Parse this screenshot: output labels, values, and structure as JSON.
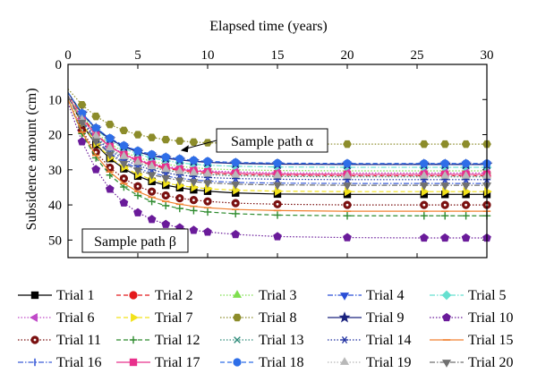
{
  "chart_data": {
    "type": "line",
    "xlabel": "Elapsed time (years)",
    "ylabel": "Subsidence amount (cm)",
    "xlim": [
      0,
      30
    ],
    "ylim": [
      0,
      55
    ],
    "y_inverted": true,
    "x_axis_position": "top",
    "grid": false,
    "legend_placement": "bottom",
    "x_ticks": [
      0,
      5,
      10,
      15,
      20,
      25,
      30
    ],
    "y_ticks": [
      0,
      10,
      20,
      30,
      40,
      50
    ],
    "x": [
      0,
      1,
      2,
      3,
      4,
      5,
      6,
      7,
      8,
      9,
      10,
      12,
      15,
      20,
      25.5,
      27,
      28.5,
      30
    ],
    "annotations": [
      {
        "text": "Sample path α",
        "points_to": {
          "x": 8,
          "y": 24.5
        }
      },
      {
        "text": "Sample path β",
        "near": {
          "x": 3.5,
          "y": 49
        }
      }
    ],
    "series": [
      {
        "name": "Trial 1",
        "color": "#000000",
        "marker": "square",
        "dash": "solid",
        "values": [
          9,
          17,
          22.8,
          26.8,
          29.7,
          31.8,
          33.3,
          34.4,
          35.1,
          35.7,
          36.1,
          36.6,
          36.9,
          37.0,
          37.0,
          37.0,
          37.0,
          37.0
        ]
      },
      {
        "name": "Trial 2",
        "color": "#e41a1c",
        "marker": "circle",
        "dash": "dashed",
        "values": [
          8,
          14.9,
          19.8,
          23.3,
          25.7,
          27.4,
          28.7,
          29.6,
          30.2,
          30.7,
          31.0,
          31.4,
          31.6,
          31.7,
          31.7,
          31.7,
          31.7,
          31.7
        ]
      },
      {
        "name": "Trial 3",
        "color": "#7fdf4f",
        "marker": "triangle-up",
        "dash": "dotted",
        "values": [
          8,
          14.6,
          19.3,
          22.6,
          24.9,
          26.5,
          27.6,
          28.4,
          29.0,
          29.4,
          29.7,
          30.0,
          30.2,
          30.3,
          30.3,
          30.3,
          30.3,
          30.3
        ]
      },
      {
        "name": "Trial 4",
        "color": "#2a4fd6",
        "marker": "triangle-down",
        "dash": "dashdot",
        "values": [
          8,
          13.9,
          18.1,
          21.1,
          23.2,
          24.7,
          25.8,
          26.6,
          27.1,
          27.5,
          27.8,
          28.1,
          28.3,
          28.4,
          28.4,
          28.4,
          28.4,
          28.4
        ]
      },
      {
        "name": "Trial 5",
        "color": "#66e0d0",
        "marker": "diamond",
        "dash": "dashdot",
        "values": [
          8,
          14.1,
          18.5,
          21.7,
          23.9,
          25.5,
          26.6,
          27.4,
          28.0,
          28.4,
          28.7,
          29.0,
          29.2,
          29.3,
          29.3,
          29.3,
          29.3,
          29.3
        ]
      },
      {
        "name": "Trial 6",
        "color": "#c04ac8",
        "marker": "triangle-left",
        "dash": "dotted",
        "values": [
          9,
          15.4,
          20.0,
          23.2,
          25.5,
          27.1,
          28.2,
          29.0,
          29.6,
          30.0,
          30.3,
          30.6,
          30.8,
          30.9,
          30.9,
          30.9,
          30.9,
          30.9
        ]
      },
      {
        "name": "Trial 7",
        "color": "#f2e21a",
        "marker": "triangle-right",
        "dash": "dashed",
        "values": [
          9,
          16.9,
          22.5,
          26.5,
          29.3,
          31.3,
          32.8,
          33.8,
          34.5,
          35.0,
          35.4,
          35.8,
          36.1,
          36.2,
          36.2,
          36.2,
          36.2,
          36.2
        ]
      },
      {
        "name": "Trial 8",
        "color": "#8c8c2a",
        "marker": "hexagon",
        "dash": "dotted",
        "values": [
          7,
          11.5,
          14.8,
          17.1,
          18.8,
          20.0,
          20.8,
          21.4,
          21.8,
          22.1,
          22.3,
          22.5,
          22.6,
          22.7,
          22.7,
          22.7,
          22.7,
          22.7
        ]
      },
      {
        "name": "Trial 9",
        "color": "#1a237e",
        "marker": "star",
        "dash": "solid",
        "values": [
          8,
          14.0,
          18.3,
          21.3,
          23.4,
          24.9,
          26.0,
          26.7,
          27.2,
          27.6,
          27.9,
          28.2,
          28.4,
          28.5,
          28.5,
          28.5,
          28.5,
          28.5
        ]
      },
      {
        "name": "Trial 10",
        "color": "#6a1b9a",
        "marker": "pentagon",
        "dash": "dotted",
        "values": [
          11,
          22.0,
          29.9,
          35.5,
          39.4,
          42.2,
          44.1,
          45.5,
          46.5,
          47.2,
          47.7,
          48.4,
          49.0,
          49.3,
          49.4,
          49.4,
          49.4,
          49.4
        ]
      },
      {
        "name": "Trial 11",
        "color": "#7a1010",
        "marker": "circle-dot",
        "dash": "dotted",
        "values": [
          10,
          18.8,
          25.0,
          29.4,
          32.5,
          34.7,
          36.2,
          37.3,
          38.1,
          38.6,
          39.0,
          39.5,
          39.8,
          40.0,
          40.0,
          40.0,
          40.0,
          40.0
        ]
      },
      {
        "name": "Trial 12",
        "color": "#2e8b2e",
        "marker": "plus",
        "dash": "dashed",
        "values": [
          10,
          19.7,
          26.6,
          31.5,
          34.9,
          37.3,
          39.0,
          40.2,
          41.0,
          41.6,
          42.0,
          42.5,
          42.9,
          43.1,
          43.1,
          43.1,
          43.1,
          43.1
        ]
      },
      {
        "name": "Trial 13",
        "color": "#2e8b7a",
        "marker": "x",
        "dash": "dotted",
        "values": [
          9,
          15.8,
          20.6,
          24.0,
          26.4,
          28.1,
          29.3,
          30.1,
          30.7,
          31.1,
          31.4,
          31.7,
          31.9,
          32.0,
          32.0,
          32.0,
          32.0,
          32.0
        ]
      },
      {
        "name": "Trial 14",
        "color": "#1e2fa0",
        "marker": "asterisk",
        "dash": "dotted",
        "values": [
          9,
          16.0,
          21.0,
          24.5,
          27.0,
          28.8,
          30.0,
          30.9,
          31.5,
          31.9,
          32.2,
          32.5,
          32.7,
          32.8,
          32.8,
          32.8,
          32.8,
          32.8
        ]
      },
      {
        "name": "Trial 15",
        "color": "#f08030",
        "marker": "hline",
        "dash": "solid",
        "values": [
          10,
          19.3,
          25.9,
          30.6,
          33.9,
          36.2,
          37.8,
          39.0,
          39.8,
          40.4,
          40.8,
          41.3,
          41.6,
          41.8,
          41.8,
          41.8,
          41.8,
          41.8
        ]
      },
      {
        "name": "Trial 16",
        "color": "#3a5cd8",
        "marker": "vline",
        "dash": "dashdot",
        "values": [
          9,
          16.3,
          21.5,
          25.2,
          27.8,
          29.6,
          30.9,
          31.8,
          32.4,
          32.9,
          33.2,
          33.6,
          33.8,
          33.9,
          33.9,
          33.9,
          33.9,
          33.9
        ]
      },
      {
        "name": "Trial 17",
        "color": "#e8308c",
        "marker": "square",
        "dash": "solid",
        "values": [
          9,
          15.5,
          20.1,
          23.4,
          25.7,
          27.3,
          28.5,
          29.3,
          29.9,
          30.3,
          30.6,
          31.0,
          31.2,
          31.3,
          31.3,
          31.3,
          31.3,
          31.3
        ]
      },
      {
        "name": "Trial 18",
        "color": "#2e6ee8",
        "marker": "circle",
        "dash": "dashed",
        "values": [
          8,
          13.9,
          18.1,
          21.0,
          23.1,
          24.6,
          25.6,
          26.4,
          26.9,
          27.3,
          27.6,
          27.9,
          28.1,
          28.2,
          28.2,
          28.2,
          28.2,
          28.2
        ]
      },
      {
        "name": "Trial 19",
        "color": "#b8b8b8",
        "marker": "triangle-up",
        "dash": "dotted",
        "values": [
          9,
          15.7,
          20.4,
          23.8,
          26.2,
          27.9,
          29.1,
          29.9,
          30.5,
          30.9,
          31.2,
          31.5,
          31.7,
          31.8,
          31.8,
          31.8,
          31.8,
          31.8
        ]
      },
      {
        "name": "Trial 20",
        "color": "#707070",
        "marker": "triangle-down",
        "dash": "dashdot",
        "values": [
          9,
          16.5,
          21.8,
          25.6,
          28.2,
          30.1,
          31.4,
          32.3,
          33.0,
          33.4,
          33.7,
          34.1,
          34.3,
          34.4,
          34.4,
          34.4,
          34.4,
          34.4
        ]
      }
    ]
  }
}
